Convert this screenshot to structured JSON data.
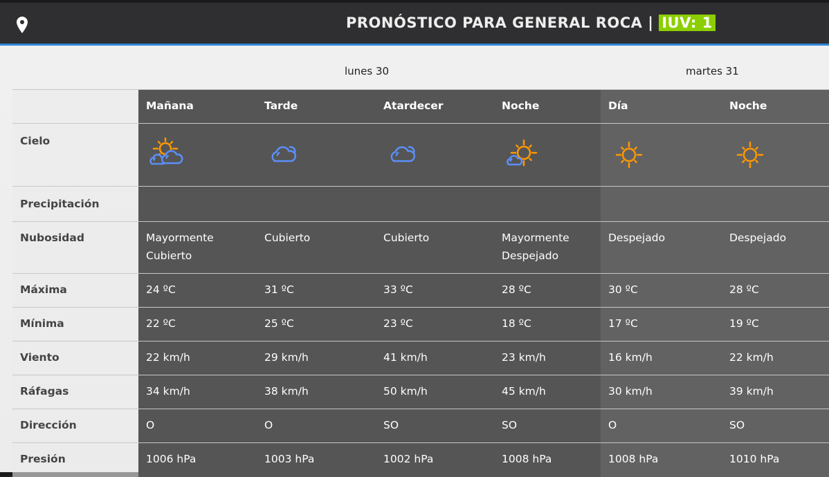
{
  "header": {
    "title": "PRONÓSTICO PARA GENERAL ROCA |",
    "uv": "IUV: 1",
    "icon": "location-pin-icon"
  },
  "days": [
    "lunes 30",
    "martes 31"
  ],
  "periods": [
    {
      "label": "Mañana",
      "day": 0,
      "icon": "partly-cloudy-icon",
      "precip": "",
      "nubosidad": "Mayormente Cubierto",
      "max": "24 ºC",
      "min": "22 ºC",
      "viento": "22 km/h",
      "rafagas": "34 km/h",
      "direccion": "O",
      "presion": "1006 hPa"
    },
    {
      "label": "Tarde",
      "day": 0,
      "icon": "cloudy-icon",
      "precip": "",
      "nubosidad": "Cubierto",
      "max": "31 ºC",
      "min": "25 ºC",
      "viento": "29 km/h",
      "rafagas": "38 km/h",
      "direccion": "O",
      "presion": "1003 hPa"
    },
    {
      "label": "Atardecer",
      "day": 0,
      "icon": "cloudy-icon",
      "precip": "",
      "nubosidad": "Cubierto",
      "max": "33 ºC",
      "min": "23 ºC",
      "viento": "41 km/h",
      "rafagas": "50 km/h",
      "direccion": "SO",
      "presion": "1002 hPa"
    },
    {
      "label": "Noche",
      "day": 0,
      "icon": "mostly-clear-icon",
      "precip": "",
      "nubosidad": "Mayormente Despejado",
      "max": "28 ºC",
      "min": "18 ºC",
      "viento": "23 km/h",
      "rafagas": "45 km/h",
      "direccion": "SO",
      "presion": "1008 hPa"
    },
    {
      "label": "Día",
      "day": 1,
      "icon": "sun-icon",
      "precip": "",
      "nubosidad": "Despejado",
      "max": "30 ºC",
      "min": "17 ºC",
      "viento": "16 km/h",
      "rafagas": "30 km/h",
      "direccion": "O",
      "presion": "1008 hPa"
    },
    {
      "label": "Noche",
      "day": 1,
      "icon": "sun-icon",
      "precip": "",
      "nubosidad": "Despejado",
      "max": "28 ºC",
      "min": "19 ºC",
      "viento": "22 km/h",
      "rafagas": "39 km/h",
      "direccion": "SO",
      "presion": "1010 hPa"
    }
  ],
  "rows": {
    "cielo": "Cielo",
    "precip": "Precipitación",
    "nubosidad": "Nubosidad",
    "max": "Máxima",
    "min": "Mínima",
    "viento": "Viento",
    "rafagas": "Ráfagas",
    "direccion": "Dirección",
    "presion": "Presión"
  },
  "colors": {
    "uv": "#8ccf00",
    "accent": "#2f86d6",
    "sun": "#ff9800",
    "cloud": "#5b8ff9"
  }
}
